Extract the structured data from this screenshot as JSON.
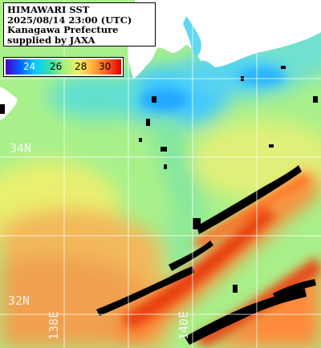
{
  "title_lines": [
    "HIMAWARI SST",
    "2025/08/14 23:00 (UTC)",
    "Kanagawa Prefecture",
    "supplied by JAXA"
  ],
  "scale": {
    "labels": [
      "24",
      "26",
      "28",
      "30"
    ],
    "colors": [
      "#4a00c8",
      "#0060ff",
      "#00c8ff",
      "#30e0b0",
      "#a0f080",
      "#f0f060",
      "#ffb040",
      "#ff6020",
      "#e00000"
    ]
  },
  "grid_labels": {
    "lat_34": "34N",
    "lat_32": "32N",
    "lon_138": "138E",
    "lon_140": "140E"
  },
  "colors": {
    "land": "#ffffff",
    "missing": "#000000",
    "grid": "#ffffff",
    "warm": "#ff7a2a",
    "hot": "#e23a10",
    "medium": "#f0c860",
    "cool": "#90ec8c",
    "cold": "#3cd8e0",
    "colder": "#20a8ff"
  }
}
